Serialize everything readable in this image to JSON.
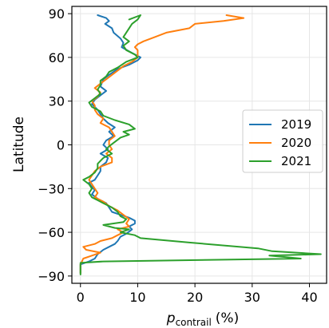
{
  "chart_data": {
    "type": "line",
    "xlabel": "p",
    "xlabel_sub": "contrail",
    "xlabel_unit": "(%)",
    "ylabel": "Latitude",
    "xlim": [
      -1.5,
      43
    ],
    "ylim": [
      -95,
      95
    ],
    "xticks": [
      0,
      10,
      20,
      30,
      40
    ],
    "yticks": [
      -90,
      -60,
      -30,
      0,
      30,
      60,
      90
    ],
    "grid": true,
    "legend_position": "center-right",
    "series": [
      {
        "name": "2019",
        "color": "#1f77b4",
        "points": [
          [
            3.0,
            89
          ],
          [
            4.5,
            87
          ],
          [
            5.0,
            85
          ],
          [
            4.3,
            83
          ],
          [
            5.5,
            80
          ],
          [
            5.8,
            77
          ],
          [
            7.0,
            73
          ],
          [
            7.5,
            70
          ],
          [
            7.2,
            67
          ],
          [
            9.0,
            63
          ],
          [
            10.5,
            60
          ],
          [
            10.0,
            58
          ],
          [
            8.5,
            55
          ],
          [
            6.5,
            52
          ],
          [
            5.0,
            48
          ],
          [
            4.0,
            45
          ],
          [
            3.5,
            40
          ],
          [
            4.5,
            37
          ],
          [
            3.5,
            34
          ],
          [
            2.5,
            31
          ],
          [
            2.0,
            28
          ],
          [
            2.5,
            26
          ],
          [
            3.0,
            24
          ],
          [
            3.5,
            21
          ],
          [
            4.0,
            18
          ],
          [
            4.8,
            15
          ],
          [
            6.0,
            12
          ],
          [
            5.0,
            9
          ],
          [
            5.8,
            6
          ],
          [
            4.5,
            3
          ],
          [
            4.0,
            0
          ],
          [
            4.8,
            -3
          ],
          [
            3.5,
            -6
          ],
          [
            4.8,
            -9
          ],
          [
            4.5,
            -12
          ],
          [
            3.5,
            -15
          ],
          [
            3.5,
            -18
          ],
          [
            3.0,
            -21
          ],
          [
            2.5,
            -24
          ],
          [
            1.5,
            -26
          ],
          [
            1.8,
            -28
          ],
          [
            2.5,
            -31
          ],
          [
            2.0,
            -34
          ],
          [
            3.0,
            -37
          ],
          [
            4.5,
            -40
          ],
          [
            5.0,
            -43
          ],
          [
            5.5,
            -46
          ],
          [
            7.0,
            -48
          ],
          [
            8.5,
            -50
          ],
          [
            9.5,
            -52
          ],
          [
            9.5,
            -54
          ],
          [
            8.5,
            -56
          ],
          [
            9.0,
            -58
          ],
          [
            8.0,
            -61
          ],
          [
            7.0,
            -63
          ],
          [
            6.5,
            -66
          ],
          [
            6.0,
            -68
          ],
          [
            5.0,
            -70
          ],
          [
            4.0,
            -72
          ],
          [
            3.0,
            -75
          ],
          [
            2.5,
            -78
          ],
          [
            1.5,
            -80
          ],
          [
            0.0,
            -82
          ],
          [
            0.0,
            -88
          ]
        ]
      },
      {
        "name": "2020",
        "color": "#ff7f0e",
        "points": [
          [
            25.5,
            89
          ],
          [
            28.5,
            87
          ],
          [
            25.0,
            85
          ],
          [
            20.0,
            83
          ],
          [
            19.0,
            80
          ],
          [
            15.0,
            77
          ],
          [
            13.0,
            74
          ],
          [
            11.0,
            71
          ],
          [
            10.0,
            69
          ],
          [
            9.5,
            67
          ],
          [
            10.0,
            65
          ],
          [
            10.0,
            62
          ],
          [
            10.0,
            60
          ],
          [
            9.0,
            57
          ],
          [
            7.5,
            54
          ],
          [
            6.5,
            51
          ],
          [
            5.5,
            48
          ],
          [
            4.5,
            45
          ],
          [
            3.5,
            42
          ],
          [
            2.5,
            39
          ],
          [
            3.5,
            36
          ],
          [
            3.0,
            33
          ],
          [
            2.0,
            30
          ],
          [
            2.5,
            27
          ],
          [
            2.5,
            24
          ],
          [
            3.0,
            21
          ],
          [
            4.0,
            18
          ],
          [
            3.5,
            15
          ],
          [
            5.0,
            12
          ],
          [
            5.5,
            9
          ],
          [
            6.0,
            6
          ],
          [
            5.0,
            3
          ],
          [
            5.0,
            0
          ],
          [
            5.5,
            -3
          ],
          [
            4.5,
            -6
          ],
          [
            5.5,
            -9
          ],
          [
            5.5,
            -12
          ],
          [
            3.5,
            -15
          ],
          [
            2.5,
            -18
          ],
          [
            2.0,
            -21
          ],
          [
            1.5,
            -24
          ],
          [
            2.0,
            -27
          ],
          [
            2.5,
            -30
          ],
          [
            3.0,
            -33
          ],
          [
            2.5,
            -36
          ],
          [
            4.0,
            -39
          ],
          [
            5.0,
            -42
          ],
          [
            6.5,
            -45
          ],
          [
            7.5,
            -48
          ],
          [
            8.5,
            -51
          ],
          [
            8.0,
            -54
          ],
          [
            8.5,
            -56
          ],
          [
            6.5,
            -58
          ],
          [
            7.5,
            -60
          ],
          [
            6.5,
            -62
          ],
          [
            5.5,
            -64
          ],
          [
            3.5,
            -66
          ],
          [
            2.5,
            -68
          ],
          [
            0.5,
            -70
          ],
          [
            1.0,
            -72
          ],
          [
            3.5,
            -74
          ],
          [
            2.0,
            -76
          ],
          [
            0.5,
            -78
          ],
          [
            0.0,
            -82
          ],
          [
            0.0,
            -88
          ]
        ]
      },
      {
        "name": "2021",
        "color": "#2ca02c",
        "points": [
          [
            8.5,
            86
          ],
          [
            10.5,
            89
          ],
          [
            10.0,
            86
          ],
          [
            9.0,
            83
          ],
          [
            8.5,
            80
          ],
          [
            8.0,
            77
          ],
          [
            7.5,
            74
          ],
          [
            8.5,
            71
          ],
          [
            7.5,
            68
          ],
          [
            8.0,
            65
          ],
          [
            9.5,
            62
          ],
          [
            10.0,
            60
          ],
          [
            8.0,
            57
          ],
          [
            6.5,
            53
          ],
          [
            5.0,
            50
          ],
          [
            4.5,
            47
          ],
          [
            3.5,
            44
          ],
          [
            3.5,
            41
          ],
          [
            3.0,
            38
          ],
          [
            3.5,
            35
          ],
          [
            2.5,
            32
          ],
          [
            1.5,
            29
          ],
          [
            2.0,
            26
          ],
          [
            3.5,
            23
          ],
          [
            4.0,
            20
          ],
          [
            6.0,
            17
          ],
          [
            8.5,
            14
          ],
          [
            9.5,
            11
          ],
          [
            7.5,
            9
          ],
          [
            8.5,
            7
          ],
          [
            7.0,
            5
          ],
          [
            6.0,
            2
          ],
          [
            5.0,
            -1
          ],
          [
            4.5,
            -3
          ],
          [
            5.5,
            -6
          ],
          [
            4.0,
            -9
          ],
          [
            3.0,
            -13
          ],
          [
            3.0,
            -16
          ],
          [
            2.5,
            -19
          ],
          [
            1.5,
            -22
          ],
          [
            0.5,
            -24
          ],
          [
            1.5,
            -27
          ],
          [
            2.0,
            -30
          ],
          [
            1.5,
            -33
          ],
          [
            2.0,
            -36
          ],
          [
            3.0,
            -38
          ],
          [
            4.0,
            -40
          ],
          [
            5.5,
            -43
          ],
          [
            6.5,
            -46
          ],
          [
            7.0,
            -49
          ],
          [
            8.0,
            -51
          ],
          [
            7.5,
            -53
          ],
          [
            4.0,
            -55
          ],
          [
            6.0,
            -57
          ],
          [
            8.5,
            -58
          ],
          [
            7.0,
            -60
          ],
          [
            9.5,
            -62
          ],
          [
            10.5,
            -64
          ],
          [
            19.0,
            -67
          ],
          [
            31.0,
            -71
          ],
          [
            33.5,
            -73
          ],
          [
            42.0,
            -75
          ],
          [
            33.0,
            -76
          ],
          [
            38.5,
            -78
          ],
          [
            4.0,
            -80
          ],
          [
            0.0,
            -81
          ],
          [
            0.0,
            -89
          ]
        ]
      }
    ]
  }
}
